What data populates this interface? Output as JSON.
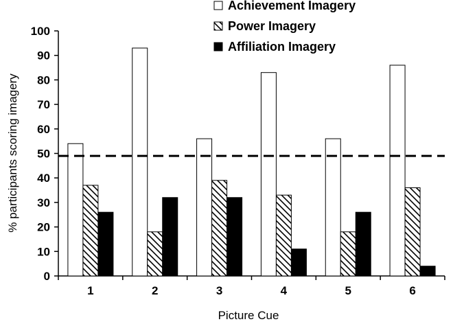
{
  "chart_data": {
    "type": "bar",
    "xlabel": "Picture Cue",
    "ylabel": "% participants scoring imagery",
    "ylim": [
      0,
      100
    ],
    "y_ticks": [
      "0",
      "10",
      "20",
      "30",
      "40",
      "50",
      "60",
      "70",
      "80",
      "90",
      "100"
    ],
    "categories": [
      "1",
      "2",
      "3",
      "4",
      "5",
      "6"
    ],
    "series": [
      {
        "name": "Achievement Imagery",
        "values": [
          54,
          93,
          56,
          83,
          56,
          86
        ],
        "fill": "#ffffff",
        "pattern": "none"
      },
      {
        "name": "Power Imagery",
        "values": [
          37,
          18,
          39,
          33,
          18,
          36
        ],
        "fill": "#ffffff",
        "pattern": "diagonal-hatch"
      },
      {
        "name": "Affiliation Imagery",
        "values": [
          26,
          32,
          32,
          11,
          26,
          4
        ],
        "fill": "#000000",
        "pattern": "none"
      }
    ],
    "reference_line": {
      "value": 49,
      "style": "dashed"
    },
    "legend_position": "top-right",
    "grid": false,
    "bar_stroke": "#000000"
  }
}
